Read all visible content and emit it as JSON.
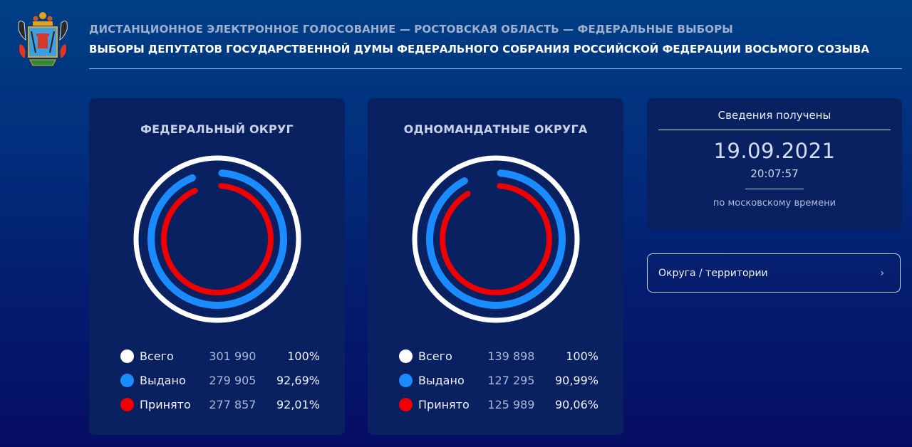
{
  "header": {
    "subtitle": "ДИСТАНЦИОННОЕ ЭЛЕКТРОННОЕ ГОЛОСОВАНИЕ — РОСТОВСКАЯ ОБЛАСТЬ — ФЕДЕРАЛЬНЫЕ ВЫБОРЫ",
    "title": "ВЫБОРЫ ДЕПУТАТОВ ГОСУДАРСТВЕННОЙ ДУМЫ ФЕДЕРАЛЬНОГО СОБРАНИЯ РОССИЙСКОЙ ФЕДЕРАЦИИ ВОСЬМОГО СОЗЫВА",
    "logo_icon": "rostov-oblast-coat-of-arms-icon"
  },
  "colors": {
    "total": "#ffffff",
    "issued": "#1a8cff",
    "accepted": "#f00000",
    "panel_bg": "#0a2161"
  },
  "panels": [
    {
      "title": "ФЕДЕРАЛЬНЫЙ ОКРУГ",
      "rows": [
        {
          "label": "Всего",
          "value": "301 990",
          "percent": "100%"
        },
        {
          "label": "Выдано",
          "value": "279 905",
          "percent": "92,69%"
        },
        {
          "label": "Принято",
          "value": "277 857",
          "percent": "92,01%"
        }
      ]
    },
    {
      "title": "ОДНОМАНДАТНЫЕ ОКРУГА",
      "rows": [
        {
          "label": "Всего",
          "value": "139 898",
          "percent": "100%"
        },
        {
          "label": "Выдано",
          "value": "127 295",
          "percent": "90,99%"
        },
        {
          "label": "Принято",
          "value": "125 989",
          "percent": "90,06%"
        }
      ]
    }
  ],
  "chart_data": [
    {
      "type": "pie",
      "title": "ФЕДЕРАЛЬНЫЙ ОКРУГ",
      "categories": [
        "Всего",
        "Выдано",
        "Принято"
      ],
      "values": [
        301990,
        279905,
        277857
      ],
      "percents": [
        100,
        92.69,
        92.01
      ],
      "colors": [
        "#ffffff",
        "#1a8cff",
        "#f00000"
      ]
    },
    {
      "type": "pie",
      "title": "ОДНОМАНДАТНЫЕ ОКРУГА",
      "categories": [
        "Всего",
        "Выдано",
        "Принято"
      ],
      "values": [
        139898,
        127295,
        125989
      ],
      "percents": [
        100,
        90.99,
        90.06
      ],
      "colors": [
        "#ffffff",
        "#1a8cff",
        "#f00000"
      ]
    }
  ],
  "info": {
    "caption": "Сведения получены",
    "date": "19.09.2021",
    "time": "20:07:57",
    "timezone_note": "по московскому времени"
  },
  "nav": {
    "label": "Округа / территории",
    "chevron": "›"
  }
}
